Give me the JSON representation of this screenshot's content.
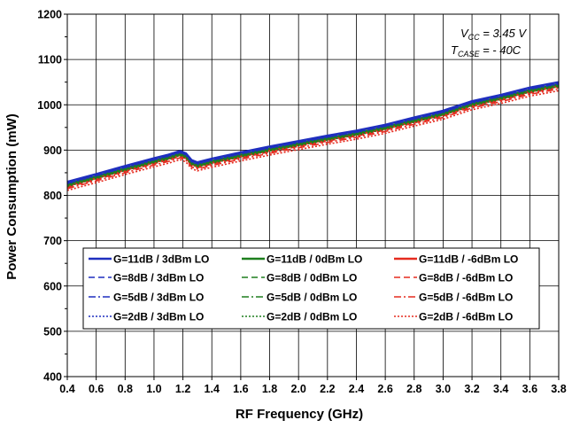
{
  "chart_data": {
    "type": "line",
    "title": "",
    "xlabel": "RF Frequency (GHz)",
    "ylabel": "Power Consumption (mW)",
    "xlim": [
      0.4,
      3.8
    ],
    "ylim": [
      400,
      1200
    ],
    "xticks": [
      "0.4",
      "0.6",
      "0.8",
      "1.0",
      "1.2",
      "1.4",
      "1.6",
      "1.8",
      "2.0",
      "2.2",
      "2.4",
      "2.6",
      "2.8",
      "3.0",
      "3.2",
      "3.4",
      "3.6",
      "3.8"
    ],
    "yticks": [
      "400",
      "500",
      "600",
      "700",
      "800",
      "900",
      "1000",
      "1100",
      "1200"
    ],
    "grid": true,
    "legend_position": "bottom-center",
    "annotation": {
      "vcc_label": "V",
      "vcc_sub": "CC",
      "vcc_value": " = 3.45 V",
      "tcase_label": "T",
      "tcase_sub": "CASE",
      "tcase_value": " = - 40C"
    },
    "colors": {
      "blue": "#1f2fbf",
      "green": "#1e7f1e",
      "red": "#e52b1f"
    },
    "x": [
      0.4,
      0.6,
      0.8,
      1.0,
      1.1,
      1.18,
      1.22,
      1.26,
      1.3,
      1.36,
      1.4,
      1.6,
      1.8,
      2.0,
      2.2,
      2.4,
      2.6,
      2.8,
      3.0,
      3.2,
      3.4,
      3.6,
      3.8
    ],
    "series": [
      {
        "name": "G=11dB / 3dBm LO",
        "color": "blue",
        "dash": "solid",
        "values": [
          830,
          847,
          865,
          882,
          890,
          898,
          893,
          878,
          873,
          878,
          881,
          895,
          908,
          920,
          932,
          943,
          956,
          972,
          987,
          1008,
          1022,
          1038,
          1050
        ]
      },
      {
        "name": "G=11dB / 0dBm LO",
        "color": "green",
        "dash": "solid",
        "values": [
          825,
          842,
          860,
          877,
          885,
          893,
          888,
          873,
          868,
          873,
          876,
          890,
          903,
          915,
          927,
          938,
          951,
          967,
          982,
          1003,
          1017,
          1033,
          1045
        ]
      },
      {
        "name": "G=11dB / -6dBm LO",
        "color": "red",
        "dash": "solid",
        "values": [
          821,
          838,
          856,
          873,
          881,
          889,
          884,
          869,
          864,
          869,
          872,
          886,
          899,
          911,
          923,
          934,
          947,
          963,
          978,
          999,
          1013,
          1029,
          1041
        ]
      },
      {
        "name": "G=8dB / 3dBm LO",
        "color": "blue",
        "dash": "dash",
        "values": [
          828,
          845,
          863,
          880,
          888,
          896,
          891,
          876,
          871,
          876,
          879,
          893,
          906,
          918,
          930,
          941,
          954,
          970,
          985,
          1006,
          1020,
          1036,
          1048
        ]
      },
      {
        "name": "G=8dB / 0dBm LO",
        "color": "green",
        "dash": "dash",
        "values": [
          823,
          840,
          858,
          875,
          883,
          891,
          886,
          871,
          866,
          871,
          874,
          888,
          901,
          913,
          925,
          936,
          949,
          965,
          980,
          1001,
          1015,
          1031,
          1043
        ]
      },
      {
        "name": "G=8dB / -6dBm LO",
        "color": "red",
        "dash": "dash",
        "values": [
          818,
          835,
          853,
          870,
          878,
          886,
          881,
          866,
          861,
          866,
          869,
          883,
          896,
          908,
          920,
          931,
          944,
          960,
          975,
          996,
          1010,
          1026,
          1038
        ]
      },
      {
        "name": "G=5dB / 3dBm LO",
        "color": "blue",
        "dash": "dashdot",
        "values": [
          827,
          844,
          862,
          879,
          887,
          895,
          890,
          875,
          870,
          875,
          878,
          892,
          905,
          917,
          929,
          940,
          953,
          969,
          984,
          1005,
          1019,
          1035,
          1047
        ]
      },
      {
        "name": "G=5dB / 0dBm LO",
        "color": "green",
        "dash": "dashdot",
        "values": [
          822,
          839,
          857,
          874,
          882,
          890,
          885,
          870,
          865,
          870,
          873,
          887,
          900,
          912,
          924,
          935,
          948,
          964,
          979,
          1000,
          1014,
          1030,
          1042
        ]
      },
      {
        "name": "G=5dB / -6dBm LO",
        "color": "red",
        "dash": "dashdot",
        "values": [
          815,
          832,
          850,
          867,
          875,
          883,
          878,
          863,
          858,
          863,
          866,
          880,
          893,
          905,
          917,
          928,
          941,
          957,
          972,
          993,
          1007,
          1023,
          1035
        ]
      },
      {
        "name": "G=2dB / 3dBm LO",
        "color": "blue",
        "dash": "dot",
        "values": [
          826,
          843,
          861,
          878,
          886,
          894,
          889,
          874,
          869,
          874,
          877,
          891,
          904,
          916,
          928,
          939,
          952,
          968,
          983,
          1004,
          1018,
          1034,
          1046
        ]
      },
      {
        "name": "G=2dB / 0dBm LO",
        "color": "green",
        "dash": "dot",
        "values": [
          820,
          837,
          855,
          872,
          880,
          888,
          883,
          868,
          863,
          868,
          871,
          885,
          898,
          910,
          922,
          933,
          946,
          962,
          977,
          998,
          1012,
          1028,
          1040
        ]
      },
      {
        "name": "G=2dB / -6dBm LO",
        "color": "red",
        "dash": "dot",
        "values": [
          811,
          828,
          846,
          863,
          871,
          879,
          874,
          859,
          854,
          859,
          862,
          876,
          889,
          901,
          913,
          924,
          937,
          953,
          968,
          989,
          1003,
          1019,
          1031
        ]
      }
    ],
    "legend_order": [
      "G=11dB / 3dBm LO",
      "G=11dB / 0dBm LO",
      "G=11dB / -6dBm LO",
      "G=8dB / 3dBm LO",
      "G=8dB / 0dBm LO",
      "G=8dB / -6dBm LO",
      "G=5dB / 3dBm LO",
      "G=5dB / 0dBm LO",
      "G=5dB / -6dBm LO",
      "G=2dB / 3dBm LO",
      "G=2dB / 0dBm LO",
      "G=2dB / -6dBm LO"
    ]
  }
}
